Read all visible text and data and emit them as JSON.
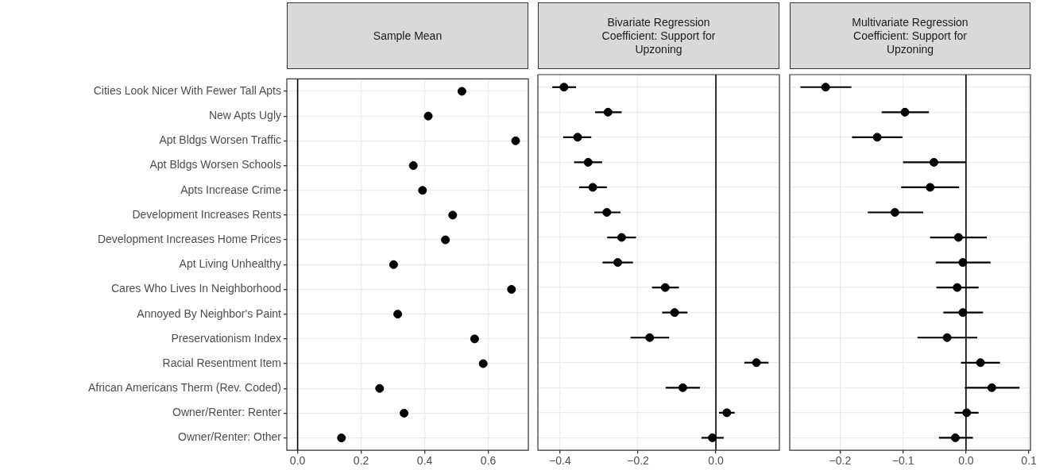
{
  "chart_data": [
    {
      "type": "scatter",
      "title": "Sample Mean",
      "orientation": "horizontal",
      "color": "#000000",
      "marker": "circle",
      "grid": true,
      "categories": [
        "Cities Look Nicer With Fewer Tall Apts",
        "New Apts Ugly",
        "Apt Bldgs Worsen Traffic",
        "Apt Bldgs Worsen Schools",
        "Apts Increase Crime",
        "Development Increases Rents",
        "Development Increases Home Prices",
        "Apt Living Unhealthy",
        "Cares Who Lives In Neighborhood",
        "Annoyed By Neighbor's Paint",
        "Preservationism Index",
        "Racial Resentment Item",
        "African Americans Therm (Rev. Coded)",
        "Owner/Renter: Renter",
        "Owner/Renter: Other"
      ],
      "values": [
        0.517,
        0.411,
        0.686,
        0.364,
        0.393,
        0.488,
        0.465,
        0.302,
        0.673,
        0.315,
        0.557,
        0.584,
        0.258,
        0.335,
        0.138
      ],
      "xlim": [
        -0.034,
        0.726
      ],
      "xticks": [
        {
          "value": 0,
          "label": "0.0"
        },
        0.2,
        0.4,
        0.6
      ],
      "ref_lines": [
        {
          "axis": "x",
          "value": 0
        }
      ]
    },
    {
      "type": "scatter",
      "title": "Bivariate Regression Coefficient: Support for Upzoning",
      "orientation": "horizontal",
      "color": "#000000",
      "marker": "circle",
      "grid": true,
      "tick_labels": "x",
      "values": [
        -0.39,
        -0.277,
        -0.355,
        -0.328,
        -0.316,
        -0.28,
        -0.242,
        -0.252,
        -0.13,
        -0.106,
        -0.17,
        0.104,
        -0.085,
        0.028,
        -0.009
      ],
      "errors": [
        [
          -0.42,
          -0.359
        ],
        [
          -0.31,
          -0.242
        ],
        [
          -0.392,
          -0.32
        ],
        [
          -0.364,
          -0.292
        ],
        [
          -0.351,
          -0.28
        ],
        [
          -0.312,
          -0.245
        ],
        [
          -0.279,
          -0.205
        ],
        [
          -0.291,
          -0.213
        ],
        [
          -0.164,
          -0.095
        ],
        [
          -0.138,
          -0.073
        ],
        [
          -0.219,
          -0.12
        ],
        [
          0.073,
          0.135
        ],
        [
          -0.129,
          -0.041
        ],
        [
          0.008,
          0.048
        ],
        [
          -0.037,
          0.02
        ]
      ],
      "xlim": [
        -0.457,
        0.163
      ],
      "xticks": [
        {
          "value": -0.4,
          "label": "−0.4"
        },
        {
          "value": -0.2,
          "label": "−0.2"
        },
        {
          "value": 0,
          "label": "0.0"
        }
      ],
      "ref_lines": [
        {
          "axis": "x",
          "value": 0
        }
      ]
    },
    {
      "type": "scatter",
      "title": "Multivariate Regression Coefficient: Support for Upzoning",
      "orientation": "horizontal",
      "color": "#000000",
      "marker": "circle",
      "grid": true,
      "tick_labels": "x",
      "values": [
        -0.223,
        -0.097,
        -0.141,
        -0.051,
        -0.057,
        -0.113,
        -0.012,
        -0.005,
        -0.014,
        -0.005,
        -0.03,
        0.023,
        0.041,
        0.001,
        -0.017
      ],
      "errors": [
        [
          -0.263,
          -0.182
        ],
        [
          -0.134,
          -0.059
        ],
        [
          -0.181,
          -0.101
        ],
        [
          -0.1,
          -0.001
        ],
        [
          -0.103,
          -0.011
        ],
        [
          -0.156,
          -0.068
        ],
        [
          -0.057,
          0.033
        ],
        [
          -0.048,
          0.039
        ],
        [
          -0.047,
          0.02
        ],
        [
          -0.036,
          0.027
        ],
        [
          -0.077,
          0.018
        ],
        [
          -0.008,
          0.054
        ],
        [
          -0.002,
          0.085
        ],
        [
          -0.018,
          0.02
        ],
        [
          -0.043,
          0.011
        ]
      ],
      "xlim": [
        -0.28,
        0.1024
      ],
      "xticks": [
        {
          "value": -0.2,
          "label": "−0.2"
        },
        {
          "value": -0.1,
          "label": "−0.1"
        },
        {
          "value": 0,
          "label": "0.0"
        },
        0.1
      ],
      "ref_lines": [
        {
          "axis": "x",
          "value": 0
        }
      ]
    }
  ]
}
